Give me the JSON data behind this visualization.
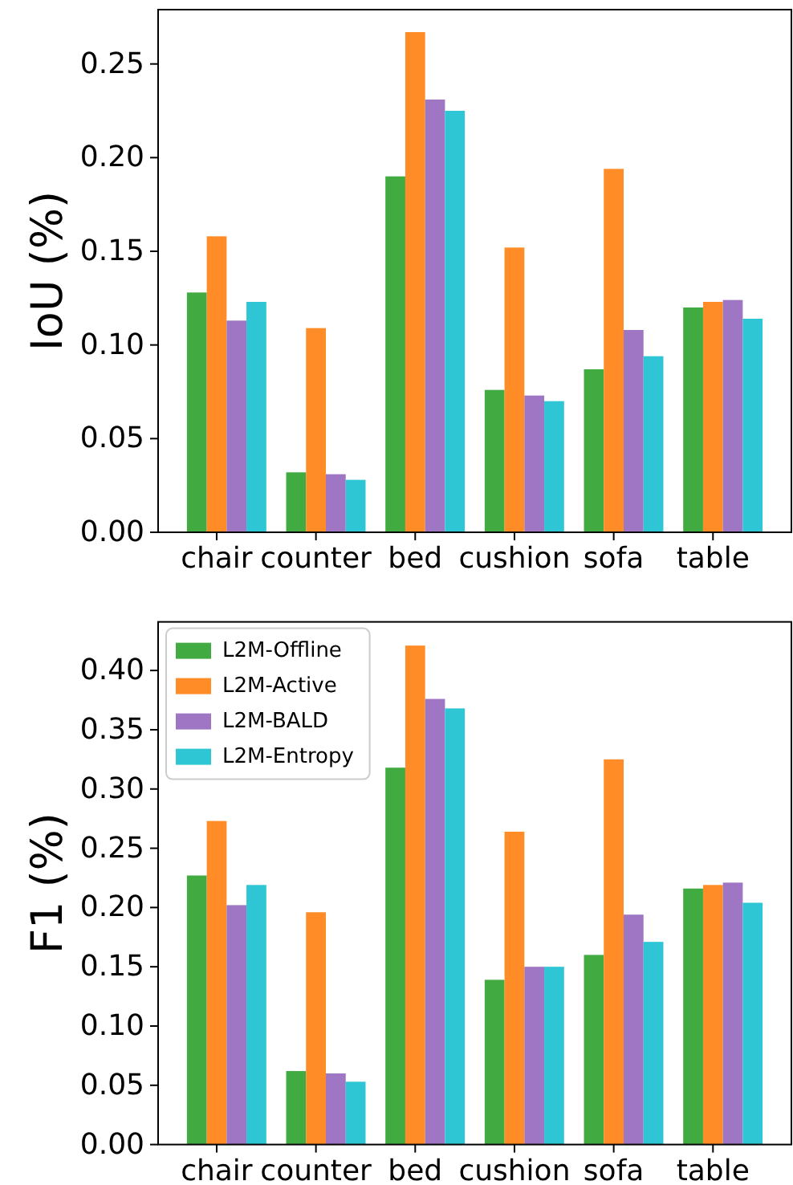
{
  "chart_data": [
    {
      "type": "bar",
      "ylabel": "IoU (%)",
      "categories": [
        "chair",
        "counter",
        "bed",
        "cushion",
        "sofa",
        "table"
      ],
      "series": [
        {
          "color": "#41aa41",
          "values": [
            0.128,
            0.032,
            0.19,
            0.076,
            0.087,
            0.12
          ]
        },
        {
          "color": "#ff8c26",
          "values": [
            0.158,
            0.109,
            0.267,
            0.152,
            0.194,
            0.123
          ]
        },
        {
          "color": "#9f76c4",
          "values": [
            0.113,
            0.031,
            0.231,
            0.073,
            0.108,
            0.124
          ]
        },
        {
          "color": "#2ec5d4",
          "values": [
            0.123,
            0.028,
            0.225,
            0.07,
            0.094,
            0.114
          ]
        }
      ],
      "ylim": [
        0,
        0.279
      ],
      "yticks": [
        {
          "value": 0,
          "label": "0.00"
        },
        0.05,
        {
          "value": 0.1,
          "label": "0.10"
        },
        0.15,
        {
          "value": 0.2,
          "label": "0.20"
        },
        0.25
      ]
    },
    {
      "type": "bar",
      "ylabel": "F1 (%)",
      "categories": [
        "chair",
        "counter",
        "bed",
        "cushion",
        "sofa",
        "table"
      ],
      "series": [
        {
          "name": "L2M-Offline",
          "color": "#41aa41",
          "values": [
            0.227,
            0.062,
            0.318,
            0.139,
            0.16,
            0.216
          ]
        },
        {
          "name": "L2M-Active",
          "color": "#ff8c26",
          "values": [
            0.273,
            0.196,
            0.421,
            0.264,
            0.325,
            0.219
          ]
        },
        {
          "name": "L2M-BALD",
          "color": "#9f76c4",
          "values": [
            0.202,
            0.06,
            0.376,
            0.15,
            0.194,
            0.221
          ]
        },
        {
          "name": "L2M-Entropy",
          "color": "#2ec5d4",
          "values": [
            0.219,
            0.053,
            0.368,
            0.15,
            0.171,
            0.204
          ]
        }
      ],
      "ylim": [
        0,
        0.441
      ],
      "yticks": [
        {
          "value": 0,
          "label": "0.00"
        },
        0.05,
        {
          "value": 0.1,
          "label": "0.10"
        },
        0.15,
        {
          "value": 0.2,
          "label": "0.20"
        },
        0.25,
        {
          "value": 0.3,
          "label": "0.30"
        },
        0.35,
        {
          "value": 0.4,
          "label": "0.40"
        }
      ],
      "legend": "top left"
    }
  ]
}
